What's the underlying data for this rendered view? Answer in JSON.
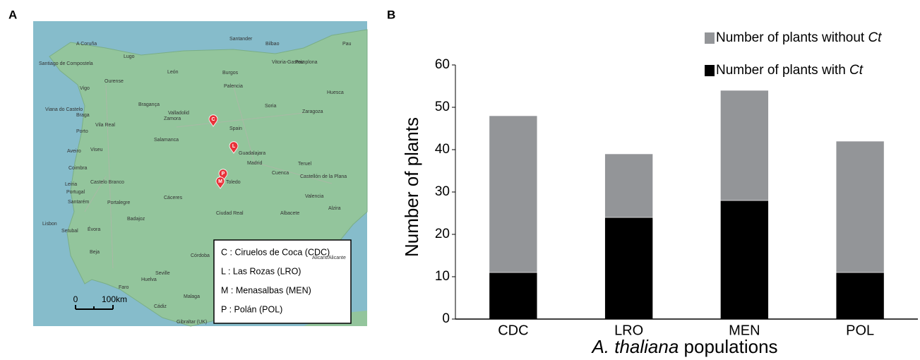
{
  "panels": [
    "A",
    "B"
  ],
  "map": {
    "cities": [
      "A Coruña",
      "Lugo",
      "Santiago de Compostela",
      "Ourense",
      "Vigo",
      "León",
      "Burgos",
      "Santander",
      "Bilbao",
      "Vitoria-Gasteiz",
      "Pamplona",
      "Pau",
      "Palencia",
      "Valladolid",
      "Zamora",
      "Bragança",
      "Viana do Castelo",
      "Braga",
      "Vila Real",
      "Porto",
      "Salamanca",
      "Aveiro",
      "Viseu",
      "Coimbra",
      "Soria",
      "Zaragoza",
      "Huesca",
      "Spain",
      "Guadalajara",
      "Madrid",
      "Teruel",
      "Cuenca",
      "Castellón de la Plana",
      "Toledo",
      "Leiria",
      "Portugal",
      "Castelo Branco",
      "Santarém",
      "Portalegre",
      "Cáceres",
      "Ciudad Real",
      "Albacete",
      "Valencia",
      "Alzira",
      "Badajoz",
      "Lisbon",
      "Setubal",
      "Évora",
      "Beja",
      "Alicant/Alicante",
      "Córdoba",
      "Seville",
      "Huelva",
      "Faro",
      "Cádiz",
      "Malaga",
      "Gibraltar (UK)"
    ],
    "markers": [
      "C",
      "L",
      "M",
      "P"
    ],
    "legend": [
      "C : Ciruelos de Coca (CDC)",
      "L : Las Rozas (LRO)",
      "M : Menasalbas (MEN)",
      "P : Polán (POL)"
    ],
    "scale": [
      "0",
      "100km"
    ]
  },
  "chart_data": {
    "type": "stacked-bar",
    "x_label": "A. thaliana populations",
    "y_label": "Number of plants",
    "categories": [
      "CDC",
      "LRO",
      "MEN",
      "POL"
    ],
    "series": [
      {
        "name": "Number of plants with Ct",
        "color": "#000000",
        "values": [
          11,
          24,
          28,
          11
        ]
      },
      {
        "name": "Number of plants without Ct",
        "color": "#939598",
        "values": [
          37,
          15,
          26,
          31
        ]
      }
    ],
    "ylim": [
      0,
      60
    ],
    "yticks": [
      0,
      10,
      20,
      30,
      40,
      50,
      60
    ]
  }
}
